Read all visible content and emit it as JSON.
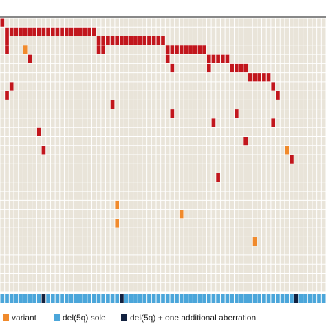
{
  "chart_data": {
    "type": "heatmap",
    "n_rows": 30,
    "n_cols": 71,
    "background_color": "#e9e4d9",
    "cells": [
      {
        "row": 0,
        "col": 0,
        "color": "#c1161c"
      },
      {
        "row": 1,
        "col": 1,
        "color": "#c1161c"
      },
      {
        "row": 1,
        "col": 2,
        "color": "#c1161c"
      },
      {
        "row": 1,
        "col": 3,
        "color": "#c1161c"
      },
      {
        "row": 1,
        "col": 4,
        "color": "#c1161c"
      },
      {
        "row": 1,
        "col": 5,
        "color": "#c1161c"
      },
      {
        "row": 1,
        "col": 6,
        "color": "#c1161c"
      },
      {
        "row": 1,
        "col": 7,
        "color": "#c1161c"
      },
      {
        "row": 1,
        "col": 8,
        "color": "#c1161c"
      },
      {
        "row": 1,
        "col": 9,
        "color": "#c1161c"
      },
      {
        "row": 1,
        "col": 10,
        "color": "#c1161c"
      },
      {
        "row": 1,
        "col": 11,
        "color": "#c1161c"
      },
      {
        "row": 1,
        "col": 12,
        "color": "#c1161c"
      },
      {
        "row": 1,
        "col": 13,
        "color": "#c1161c"
      },
      {
        "row": 1,
        "col": 14,
        "color": "#c1161c"
      },
      {
        "row": 1,
        "col": 15,
        "color": "#c1161c"
      },
      {
        "row": 1,
        "col": 16,
        "color": "#c1161c"
      },
      {
        "row": 1,
        "col": 17,
        "color": "#c1161c"
      },
      {
        "row": 1,
        "col": 18,
        "color": "#c1161c"
      },
      {
        "row": 1,
        "col": 19,
        "color": "#c1161c"
      },
      {
        "row": 1,
        "col": 20,
        "color": "#c1161c"
      },
      {
        "row": 2,
        "col": 1,
        "color": "#c1161c"
      },
      {
        "row": 2,
        "col": 21,
        "color": "#c1161c"
      },
      {
        "row": 2,
        "col": 22,
        "color": "#c1161c"
      },
      {
        "row": 2,
        "col": 23,
        "color": "#c1161c"
      },
      {
        "row": 2,
        "col": 24,
        "color": "#c1161c"
      },
      {
        "row": 2,
        "col": 25,
        "color": "#c1161c"
      },
      {
        "row": 2,
        "col": 26,
        "color": "#c1161c"
      },
      {
        "row": 2,
        "col": 27,
        "color": "#c1161c"
      },
      {
        "row": 2,
        "col": 28,
        "color": "#c1161c"
      },
      {
        "row": 2,
        "col": 29,
        "color": "#c1161c"
      },
      {
        "row": 2,
        "col": 30,
        "color": "#c1161c"
      },
      {
        "row": 2,
        "col": 31,
        "color": "#c1161c"
      },
      {
        "row": 2,
        "col": 32,
        "color": "#c1161c"
      },
      {
        "row": 2,
        "col": 33,
        "color": "#c1161c"
      },
      {
        "row": 2,
        "col": 34,
        "color": "#c1161c"
      },
      {
        "row": 2,
        "col": 35,
        "color": "#c1161c"
      },
      {
        "row": 3,
        "col": 1,
        "color": "#c1161c"
      },
      {
        "row": 3,
        "col": 5,
        "color": "#f08a2c"
      },
      {
        "row": 3,
        "col": 21,
        "color": "#c1161c"
      },
      {
        "row": 3,
        "col": 22,
        "color": "#c1161c"
      },
      {
        "row": 3,
        "col": 36,
        "color": "#c1161c"
      },
      {
        "row": 3,
        "col": 37,
        "color": "#c1161c"
      },
      {
        "row": 3,
        "col": 38,
        "color": "#c1161c"
      },
      {
        "row": 3,
        "col": 39,
        "color": "#c1161c"
      },
      {
        "row": 3,
        "col": 40,
        "color": "#c1161c"
      },
      {
        "row": 3,
        "col": 41,
        "color": "#c1161c"
      },
      {
        "row": 3,
        "col": 42,
        "color": "#c1161c"
      },
      {
        "row": 3,
        "col": 43,
        "color": "#c1161c"
      },
      {
        "row": 3,
        "col": 44,
        "color": "#c1161c"
      },
      {
        "row": 4,
        "col": 6,
        "color": "#c1161c"
      },
      {
        "row": 4,
        "col": 36,
        "color": "#c1161c"
      },
      {
        "row": 4,
        "col": 45,
        "color": "#c1161c"
      },
      {
        "row": 4,
        "col": 46,
        "color": "#c1161c"
      },
      {
        "row": 4,
        "col": 47,
        "color": "#c1161c"
      },
      {
        "row": 4,
        "col": 48,
        "color": "#c1161c"
      },
      {
        "row": 4,
        "col": 49,
        "color": "#c1161c"
      },
      {
        "row": 5,
        "col": 37,
        "color": "#c1161c"
      },
      {
        "row": 5,
        "col": 45,
        "color": "#c1161c"
      },
      {
        "row": 5,
        "col": 50,
        "color": "#c1161c"
      },
      {
        "row": 5,
        "col": 51,
        "color": "#c1161c"
      },
      {
        "row": 5,
        "col": 52,
        "color": "#c1161c"
      },
      {
        "row": 5,
        "col": 53,
        "color": "#c1161c"
      },
      {
        "row": 6,
        "col": 54,
        "color": "#c1161c"
      },
      {
        "row": 6,
        "col": 55,
        "color": "#c1161c"
      },
      {
        "row": 6,
        "col": 56,
        "color": "#c1161c"
      },
      {
        "row": 6,
        "col": 57,
        "color": "#c1161c"
      },
      {
        "row": 6,
        "col": 58,
        "color": "#c1161c"
      },
      {
        "row": 7,
        "col": 2,
        "color": "#c1161c"
      },
      {
        "row": 7,
        "col": 59,
        "color": "#c1161c"
      },
      {
        "row": 8,
        "col": 1,
        "color": "#c1161c"
      },
      {
        "row": 8,
        "col": 60,
        "color": "#c1161c"
      },
      {
        "row": 9,
        "col": 24,
        "color": "#c1161c"
      },
      {
        "row": 10,
        "col": 37,
        "color": "#c1161c"
      },
      {
        "row": 10,
        "col": 51,
        "color": "#c1161c"
      },
      {
        "row": 11,
        "col": 46,
        "color": "#c1161c"
      },
      {
        "row": 11,
        "col": 59,
        "color": "#c1161c"
      },
      {
        "row": 12,
        "col": 8,
        "color": "#c1161c"
      },
      {
        "row": 13,
        "col": 53,
        "color": "#c1161c"
      },
      {
        "row": 14,
        "col": 9,
        "color": "#c1161c"
      },
      {
        "row": 14,
        "col": 62,
        "color": "#f08a2c"
      },
      {
        "row": 15,
        "col": 63,
        "color": "#c1161c"
      },
      {
        "row": 17,
        "col": 47,
        "color": "#c1161c"
      },
      {
        "row": 20,
        "col": 25,
        "color": "#f08a2c"
      },
      {
        "row": 21,
        "col": 39,
        "color": "#f08a2c"
      },
      {
        "row": 22,
        "col": 25,
        "color": "#f08a2c"
      },
      {
        "row": 24,
        "col": 55,
        "color": "#f08a2c"
      }
    ],
    "annotation_track": {
      "color": "#4ba6da",
      "cells": [
        {
          "col": 9,
          "color": "#13213f"
        },
        {
          "col": 26,
          "color": "#13213f"
        },
        {
          "col": 64,
          "color": "#13213f"
        }
      ]
    },
    "legend": [
      {
        "name": "variant",
        "color": "#f08a2c"
      },
      {
        "name": "del(5q) sole",
        "color": "#4ba6da"
      },
      {
        "name": "del(5q) + one additional aberration",
        "color": "#13213f"
      }
    ]
  }
}
